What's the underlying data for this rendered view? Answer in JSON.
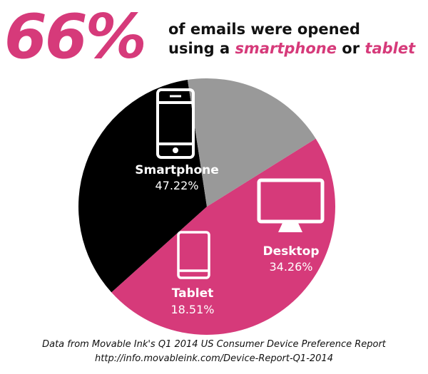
{
  "header": {
    "percent": "66%",
    "line1": "of emails were opened",
    "line2_prefix": "using a ",
    "term1": "smartphone",
    "connector": " or ",
    "term2": "tablet"
  },
  "colors": {
    "accent": "#d63a7a",
    "desktop": "#000000",
    "tablet": "#999999"
  },
  "chart_data": {
    "type": "pie",
    "start_angle_deg": 58,
    "slices": [
      {
        "label": "Smartphone",
        "value": 47.22,
        "display": "47.22%",
        "color": "#d63a7a",
        "icon": "smartphone-icon"
      },
      {
        "label": "Desktop",
        "value": 34.26,
        "display": "34.26%",
        "color": "#000000",
        "icon": "desktop-icon"
      },
      {
        "label": "Tablet",
        "value": 18.51,
        "display": "18.51%",
        "color": "#999999",
        "icon": "tablet-icon"
      }
    ]
  },
  "source": {
    "line1": "Data from Movable Ink's Q1 2014 US Consumer Device Preference Report",
    "line2": "http://info.movableink.com/Device-Report-Q1-2014"
  }
}
